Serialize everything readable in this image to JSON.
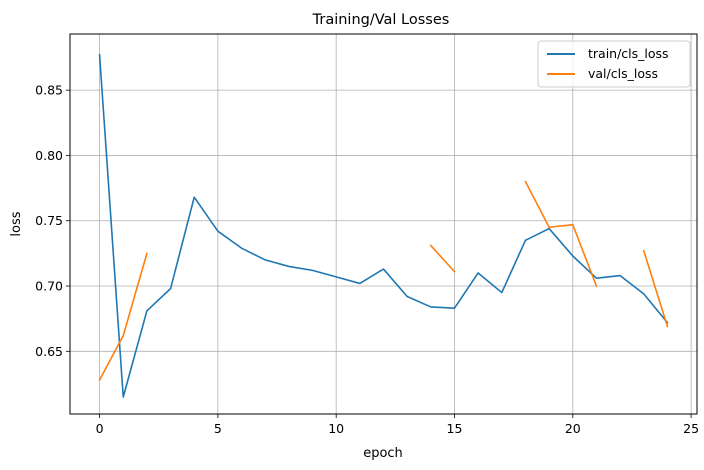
{
  "chart_data": {
    "type": "line",
    "title": "Training/Val Losses",
    "xlabel": "epoch",
    "ylabel": "loss",
    "xlim": [
      -1.25,
      25.25
    ],
    "ylim": [
      0.602,
      0.893
    ],
    "xticks": [
      0,
      5,
      10,
      15,
      20,
      25
    ],
    "yticks": [
      0.65,
      0.7,
      0.75,
      0.8,
      0.85
    ],
    "ytick_labels": [
      "0.65",
      "0.70",
      "0.75",
      "0.80",
      "0.85"
    ],
    "grid": true,
    "legend_position": "top-right",
    "series": [
      {
        "name": "train/cls_loss",
        "color": "#1f77b4",
        "x": [
          0,
          1,
          2,
          3,
          4,
          5,
          6,
          7,
          8,
          9,
          10,
          11,
          12,
          13,
          14,
          15,
          16,
          17,
          18,
          19,
          20,
          21,
          22,
          23,
          24
        ],
        "y": [
          0.877,
          0.615,
          0.681,
          0.698,
          0.768,
          0.742,
          0.729,
          0.72,
          0.715,
          0.712,
          0.707,
          0.702,
          0.713,
          0.692,
          0.684,
          0.683,
          0.71,
          0.695,
          0.735,
          0.744,
          0.723,
          0.706,
          0.708,
          0.694,
          0.672
        ]
      },
      {
        "name": "val/cls_loss",
        "color": "#ff7f0e",
        "x": [
          0,
          1,
          2,
          3,
          4,
          5,
          6,
          7,
          8,
          9,
          10,
          11,
          12,
          13,
          14,
          15,
          16,
          17,
          18,
          19,
          20,
          21,
          22,
          23,
          24
        ],
        "y": [
          0.628,
          0.662,
          0.725,
          null,
          null,
          null,
          null,
          null,
          null,
          null,
          null,
          null,
          null,
          null,
          0.731,
          0.711,
          null,
          null,
          0.78,
          0.745,
          0.747,
          0.7,
          null,
          0.727,
          0.669
        ]
      }
    ]
  }
}
